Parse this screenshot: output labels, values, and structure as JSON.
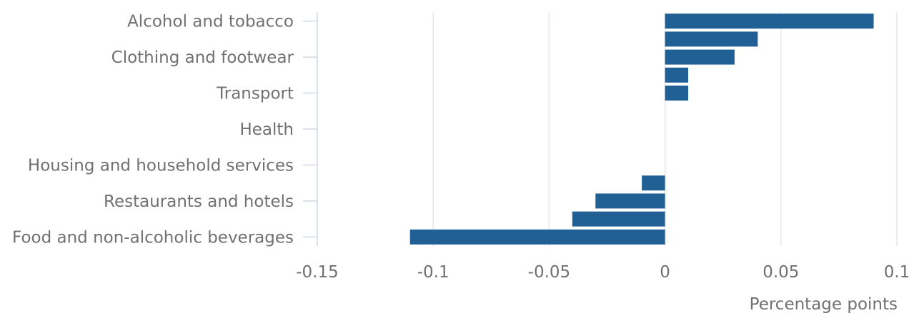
{
  "chart_data": {
    "type": "bar",
    "orientation": "horizontal",
    "categories": [
      "Alcohol and tobacco",
      "",
      "Clothing and footwear",
      "",
      "Transport",
      "",
      "Health",
      "",
      "Housing and household services",
      "",
      "Restaurants and hotels",
      "",
      "Food and non-alcoholic beverages"
    ],
    "values": [
      0.09,
      0.04,
      0.03,
      0.01,
      0.01,
      0,
      0,
      0,
      0,
      -0.01,
      -0.03,
      -0.04,
      -0.11
    ],
    "xlim": [
      -0.15,
      0.1
    ],
    "xticks": [
      -0.15,
      -0.1,
      -0.05,
      0,
      0.05,
      0.1
    ],
    "xtick_labels": [
      "-0.15",
      "-0.1",
      "-0.05",
      "0",
      "0.05",
      "0.1"
    ],
    "xlabel": "Percentage points",
    "ylabel": "",
    "title": "",
    "grid": "vertical",
    "legend": "none",
    "colors": {
      "bar": "#206095",
      "grid": "#e5e6e7",
      "axis": "#d0d8e4",
      "text": "#707071"
    }
  }
}
